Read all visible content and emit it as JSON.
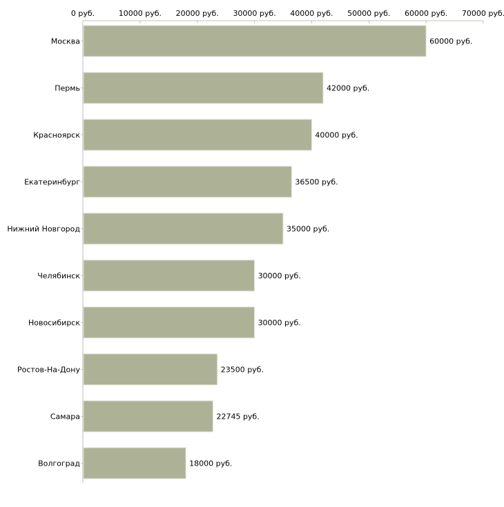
{
  "chart_data": {
    "type": "bar",
    "orientation": "horizontal",
    "title": "",
    "xlabel": "",
    "ylabel": "",
    "xlim": [
      0,
      70000
    ],
    "ticks": [
      0,
      10000,
      20000,
      30000,
      40000,
      50000,
      60000,
      70000
    ],
    "tick_labels": [
      "0 руб.",
      "10000 руб.",
      "20000 руб.",
      "30000 руб.",
      "40000 руб.",
      "50000 руб.",
      "60000 руб.",
      "70000 руб."
    ],
    "categories": [
      "Москва",
      "Пермь",
      "Красноярск",
      "Екатеринбург",
      "Нижний Новгород",
      "Челябинск",
      "Новосибирск",
      "Ростов-На-Дону",
      "Самара",
      "Волгоград"
    ],
    "values": [
      60000,
      42000,
      40000,
      36500,
      35000,
      30000,
      30000,
      23500,
      22745,
      18000
    ],
    "value_labels": [
      "60000 руб.",
      "42000 руб.",
      "40000 руб.",
      "36500 руб.",
      "35000 руб.",
      "30000 руб.",
      "30000 руб.",
      "23500 руб.",
      "22745 руб.",
      "18000 руб."
    ],
    "bar_color": "#adb296",
    "axis_color": "#c0c2b0",
    "grid": false,
    "axis_position": "top"
  }
}
